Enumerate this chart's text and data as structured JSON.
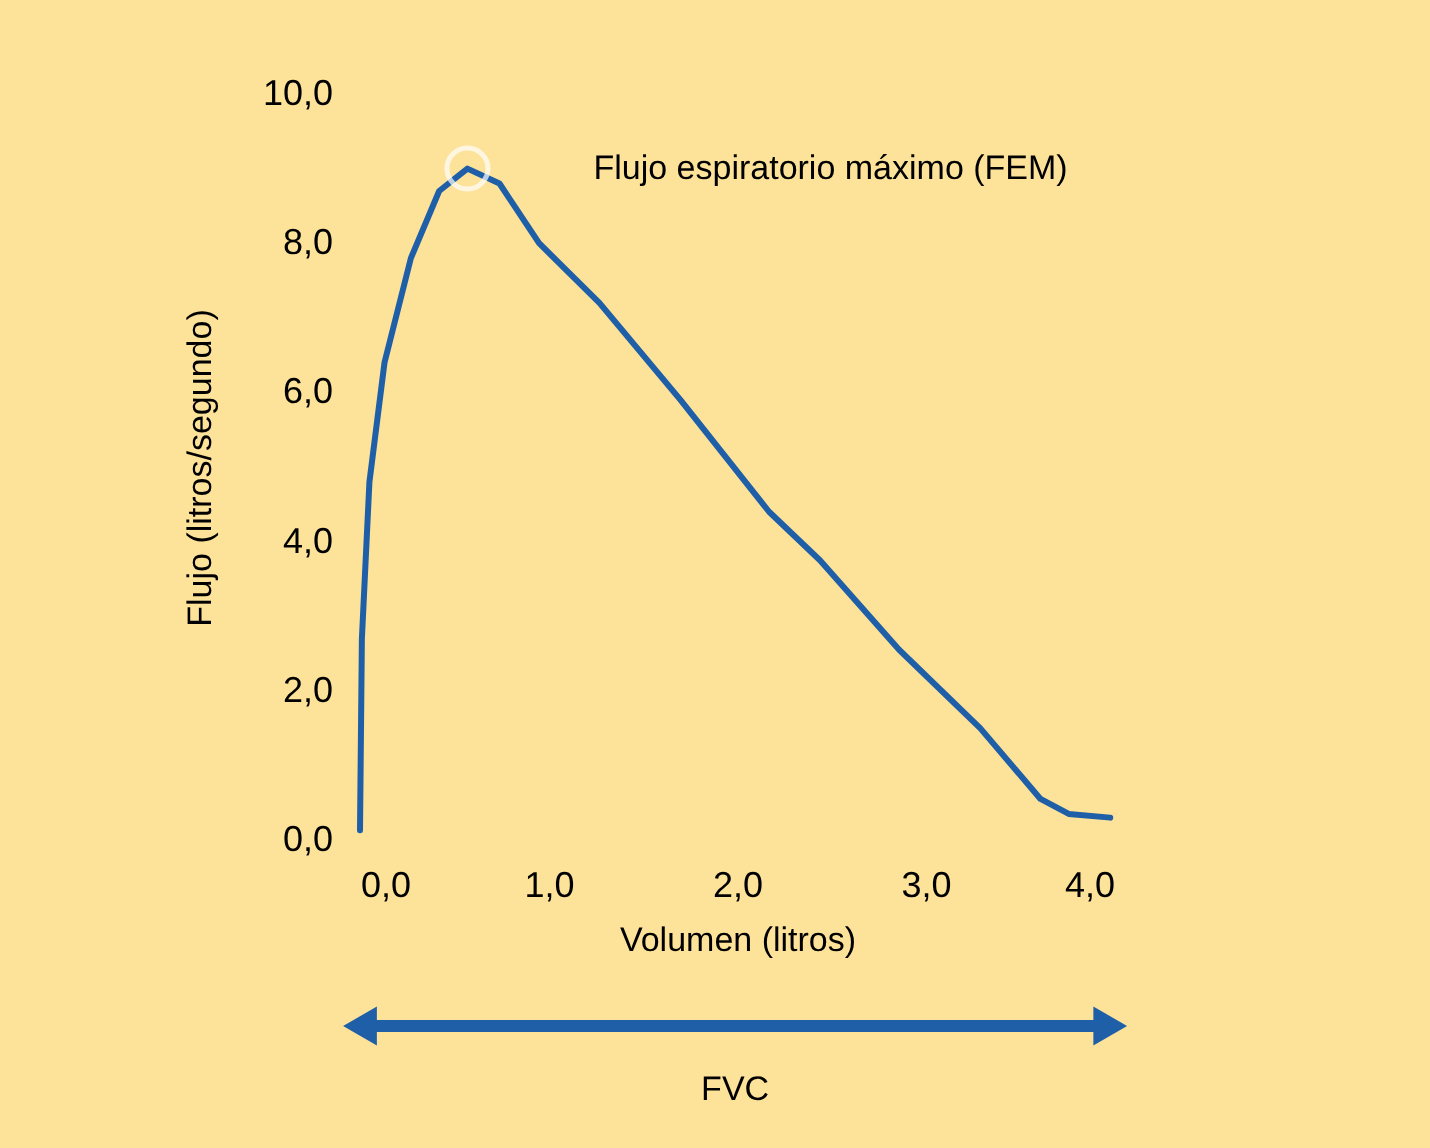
{
  "chart_data": {
    "type": "line",
    "xlabel": "Volumen (litros)",
    "ylabel": "Flujo (litros/segundo)",
    "x": [
      0.0,
      0.01,
      0.05,
      0.13,
      0.27,
      0.42,
      0.57,
      0.74,
      0.95,
      1.27,
      1.7,
      2.17,
      2.44,
      2.86,
      3.29,
      3.61,
      3.76,
      3.98
    ],
    "series": [
      {
        "color": "#1f5fa8",
        "values": [
          0.13,
          2.7,
          4.8,
          6.4,
          7.8,
          8.7,
          9.0,
          8.8,
          8.0,
          7.2,
          5.9,
          4.4,
          3.75,
          2.55,
          1.5,
          0.55,
          0.35,
          0.3
        ]
      }
    ],
    "xlim": [
      0,
      4
    ],
    "xticks": [
      {
        "value": 0,
        "label": "0,0"
      },
      {
        "value": 1,
        "label": "1,0"
      },
      {
        "value": 2,
        "label": "2,0"
      },
      {
        "value": 3,
        "label": "3,0"
      },
      {
        "value": 4,
        "label": "4,0"
      }
    ],
    "ylim": [
      0,
      10
    ],
    "yticks": [
      {
        "value": 0,
        "label": "0,0"
      },
      {
        "value": 2,
        "label": "2,0"
      },
      {
        "value": 4,
        "label": "4,0"
      },
      {
        "value": 6,
        "label": "6,0"
      },
      {
        "value": 8,
        "label": "8,0"
      },
      {
        "value": 10,
        "label": "10,0"
      }
    ],
    "annotations": [
      "Flujo espiratorio máximo (FEM)",
      "FVC"
    ],
    "grid": false,
    "marker": "none",
    "line_style": "solid"
  }
}
